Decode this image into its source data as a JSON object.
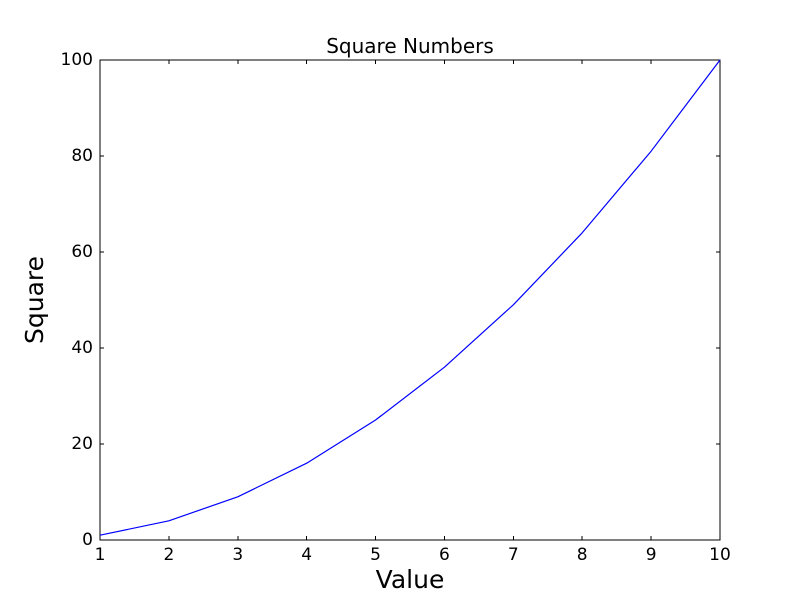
{
  "chart_data": {
    "type": "line",
    "title": "Square Numbers",
    "xlabel": "Value",
    "ylabel": "Square",
    "x": [
      1,
      2,
      3,
      4,
      5,
      6,
      7,
      8,
      9,
      10
    ],
    "y": [
      1,
      4,
      9,
      16,
      25,
      36,
      49,
      64,
      81,
      100
    ],
    "xlim": [
      1,
      10
    ],
    "ylim": [
      0,
      100
    ],
    "xticks": [
      1,
      2,
      3,
      4,
      5,
      6,
      7,
      8,
      9,
      10
    ],
    "yticks": [
      0,
      20,
      40,
      60,
      80,
      100
    ],
    "grid": false,
    "legend": null,
    "line_color": "#0000ff",
    "axes_color": "#000000",
    "background_color": "#ffffff"
  }
}
